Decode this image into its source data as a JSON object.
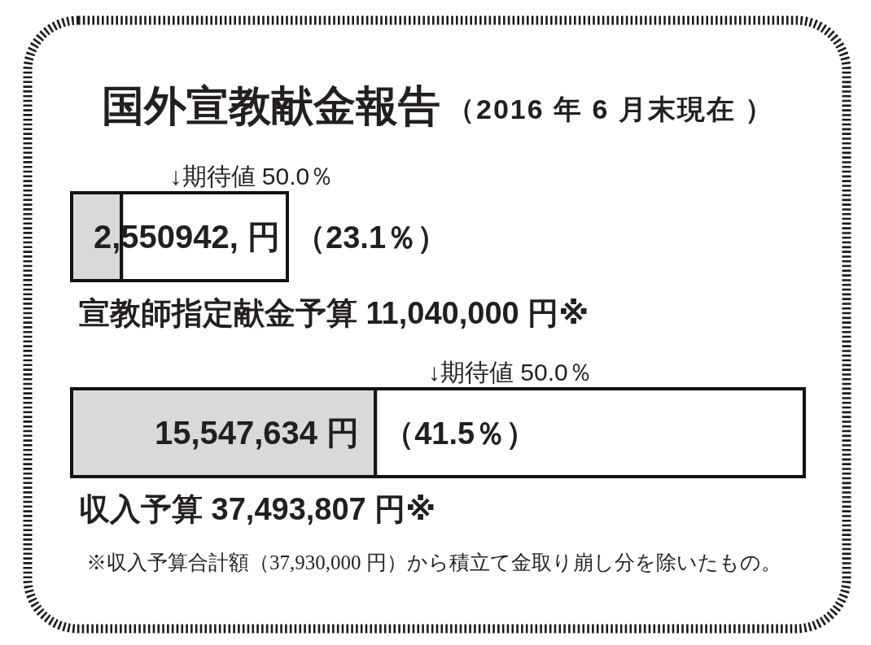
{
  "chart_data": {
    "type": "bar",
    "orientation": "horizontal",
    "stacked": true,
    "title": "国外宣教献金報告",
    "subtitle": "（2016 年 6 月末現在 ）",
    "categories": [
      "宣教師指定献金予算 11,040,000 円※",
      "収入予算 37,493,807 円※"
    ],
    "series": [
      {
        "color": "#d9d9d9",
        "values": [
          2550942,
          15547634
        ],
        "value_labels": [
          "2,550942, 円",
          "15,547,634 円"
        ]
      },
      {
        "color": "#ffffff",
        "values": [
          8489058,
          21946173
        ]
      }
    ],
    "annotations": [
      "↓期待値 50.0％",
      "（23.1％）",
      "↓期待値 50.0％",
      "（41.5％）",
      "※収入予算合計額（37,930,000 円）から積立て金取り崩し分を除いたもの。"
    ]
  }
}
